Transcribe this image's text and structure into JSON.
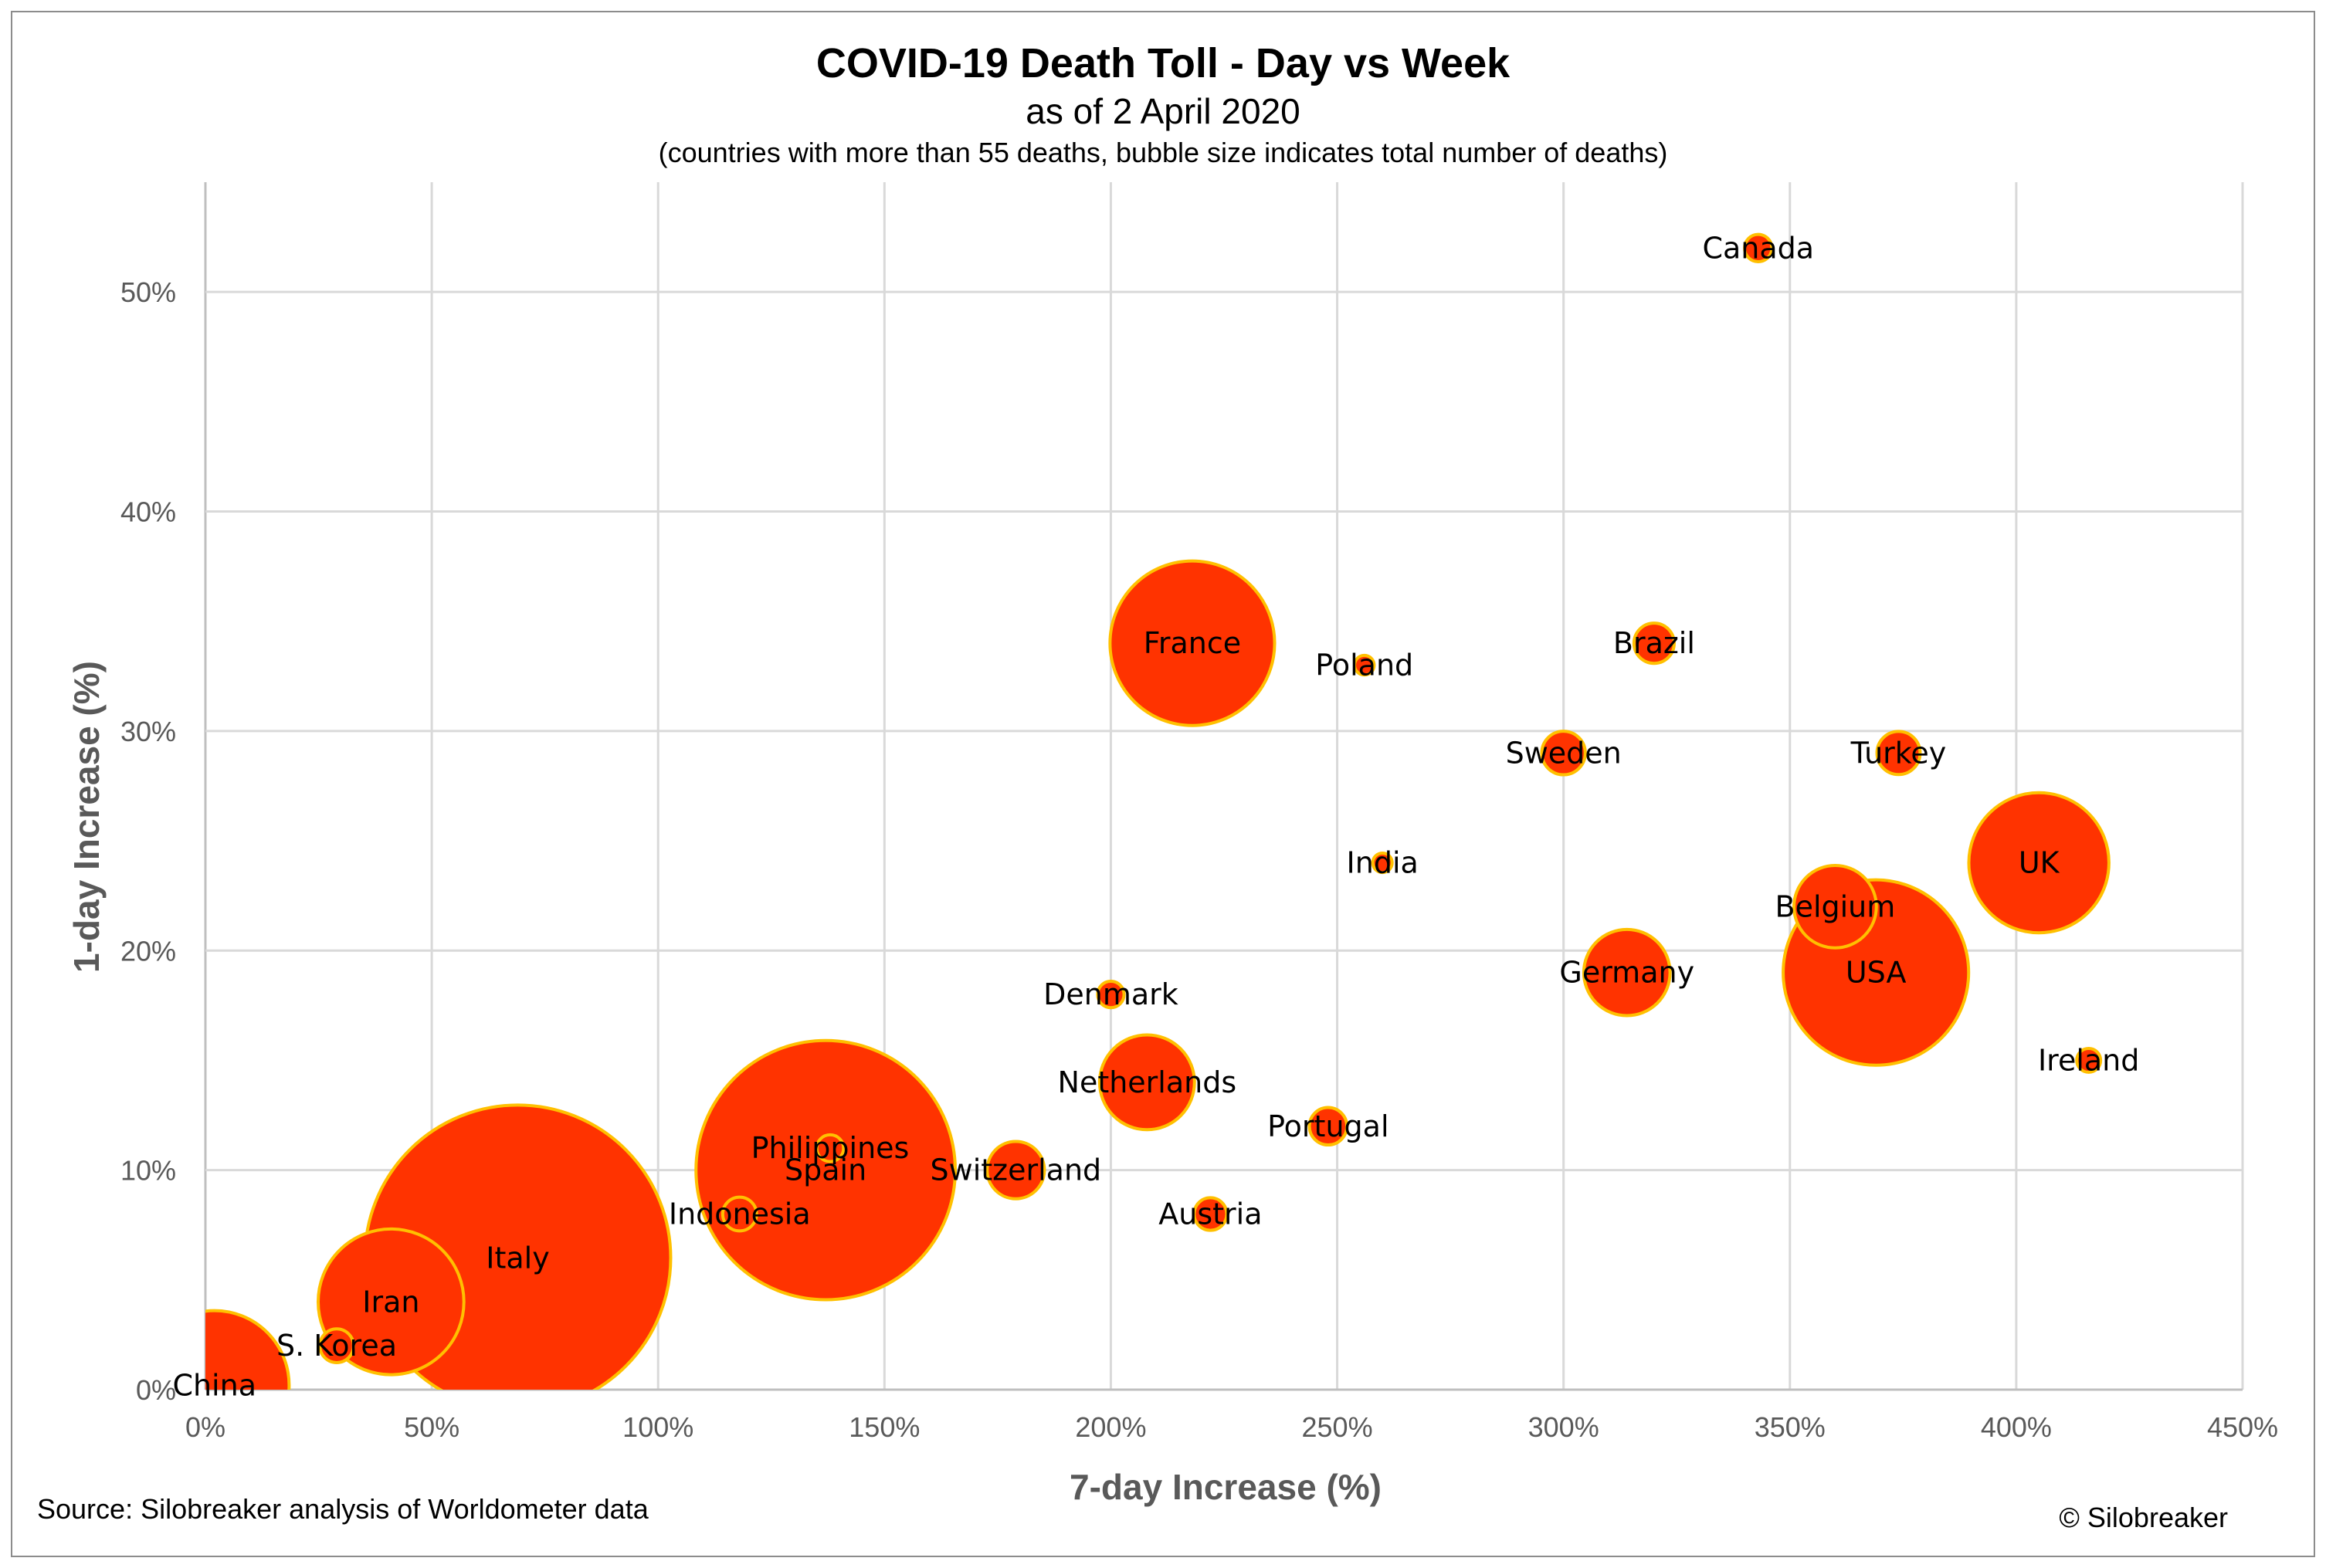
{
  "chart_data": {
    "type": "bubble",
    "title": "COVID-19 Death Toll - Day vs Week",
    "subtitle": "as of 2 April 2020",
    "note": "(countries with more than 55 deaths, bubble size indicates total number of deaths)",
    "xlabel": "7-day Increase (%)",
    "ylabel": "1-day Increase (%)",
    "xlim": [
      0,
      450
    ],
    "ylim": [
      0,
      55
    ],
    "xticks": [
      0,
      50,
      100,
      150,
      200,
      250,
      300,
      350,
      400,
      450
    ],
    "yticks": [
      0,
      10,
      20,
      30,
      40,
      50
    ],
    "xtick_labels": [
      "0%",
      "50%",
      "100%",
      "150%",
      "200%",
      "250%",
      "300%",
      "350%",
      "400%",
      "450%"
    ],
    "ytick_labels": [
      "0%",
      "10%",
      "20%",
      "30%",
      "40%",
      "50%"
    ],
    "grid": true,
    "colors": {
      "bubble_fill": "#ff3300",
      "bubble_edge": "#ffc000"
    },
    "points": [
      {
        "name": "Italy",
        "x": 69,
        "y": 6,
        "size": 13915
      },
      {
        "name": "Spain",
        "x": 137,
        "y": 10,
        "size": 10003
      },
      {
        "name": "USA",
        "x": 369,
        "y": 19,
        "size": 5116
      },
      {
        "name": "France",
        "x": 218,
        "y": 34,
        "size": 4032
      },
      {
        "name": "China",
        "x": 2,
        "y": 0.2,
        "size": 3318
      },
      {
        "name": "Iran",
        "x": 41,
        "y": 4,
        "size": 3160
      },
      {
        "name": "UK",
        "x": 405,
        "y": 24,
        "size": 2921
      },
      {
        "name": "Netherlands",
        "x": 208,
        "y": 14,
        "size": 1339
      },
      {
        "name": "Germany",
        "x": 314,
        "y": 19,
        "size": 1107
      },
      {
        "name": "Belgium",
        "x": 360,
        "y": 22,
        "size": 1011
      },
      {
        "name": "Switzerland",
        "x": 179,
        "y": 10,
        "size": 488
      },
      {
        "name": "Turkey",
        "x": 374,
        "y": 29,
        "size": 277
      },
      {
        "name": "Brazil",
        "x": 320,
        "y": 34,
        "size": 241
      },
      {
        "name": "Sweden",
        "x": 300,
        "y": 29,
        "size": 282
      },
      {
        "name": "Portugal",
        "x": 248,
        "y": 12,
        "size": 209
      },
      {
        "name": "Austria",
        "x": 222,
        "y": 8,
        "size": 158
      },
      {
        "name": "S. Korea",
        "x": 29,
        "y": 2,
        "size": 169
      },
      {
        "name": "Indonesia",
        "x": 118,
        "y": 8,
        "size": 170
      },
      {
        "name": "Canada",
        "x": 343,
        "y": 52,
        "size": 111
      },
      {
        "name": "Denmark",
        "x": 200,
        "y": 18,
        "size": 104
      },
      {
        "name": "Ireland",
        "x": 416,
        "y": 15,
        "size": 85
      },
      {
        "name": "Philippines",
        "x": 138,
        "y": 11,
        "size": 107
      },
      {
        "name": "Poland",
        "x": 256,
        "y": 33,
        "size": 57
      },
      {
        "name": "India",
        "x": 260,
        "y": 24,
        "size": 56
      }
    ]
  },
  "footer": {
    "source": "Source: Silobreaker analysis of Worldometer data",
    "copyright": "© Silobreaker"
  }
}
